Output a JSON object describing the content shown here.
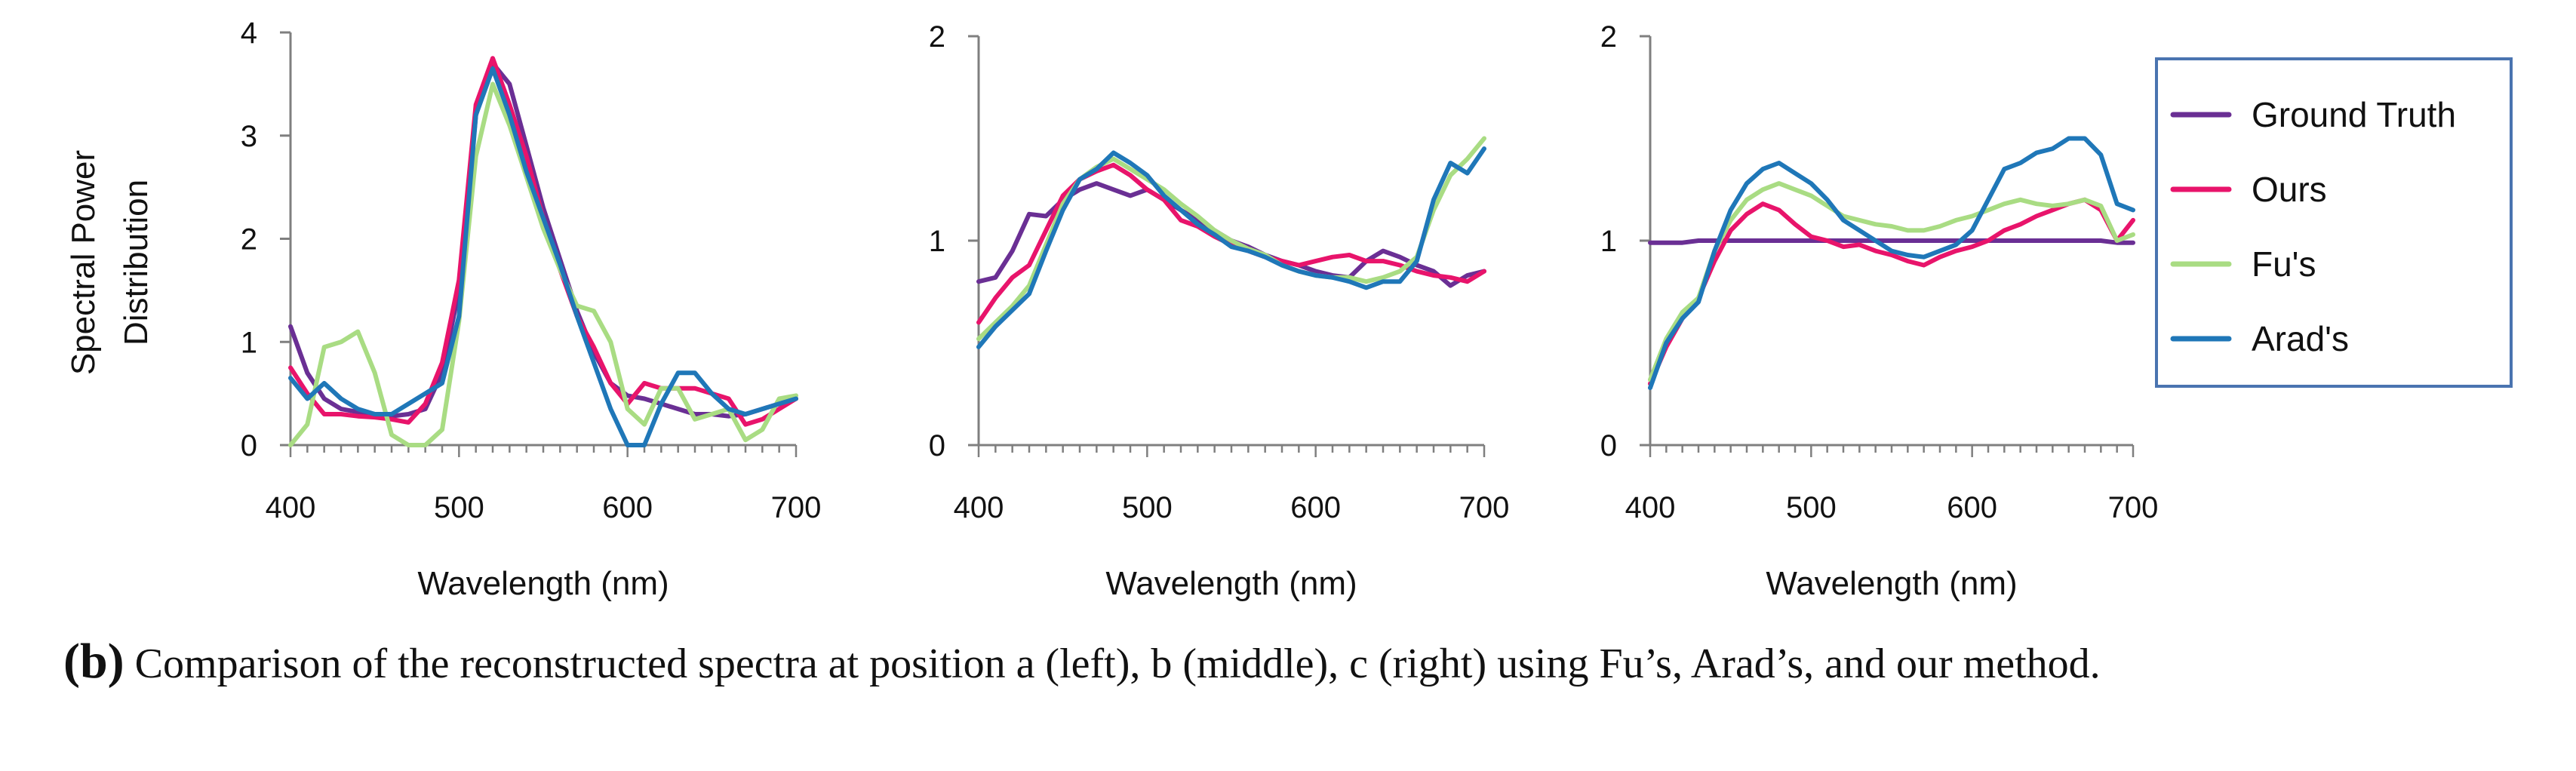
{
  "colors": {
    "ground_truth": "#6a2f94",
    "ours": "#e8146b",
    "fus": "#a9dc83",
    "arads": "#1f77b8",
    "axis": "#7f7f7f",
    "legend_border": "#4a74b0"
  },
  "y_axis_title_lines": [
    "Spectral Power",
    "Distribution"
  ],
  "legend": [
    {
      "name": "Ground Truth",
      "color_key": "ground_truth"
    },
    {
      "name": "Ours",
      "color_key": "ours"
    },
    {
      "name": "Fu's",
      "color_key": "fus"
    },
    {
      "name": "Arad's",
      "color_key": "arads"
    }
  ],
  "caption": {
    "label": "(b)",
    "text": "Comparison of the reconstructed spectra at position a (left), b (middle), c (right) using Fu’s, Arad’s, and our method."
  },
  "chart_data": [
    {
      "type": "line",
      "panel": "left",
      "xlabel": "Wavelength (nm)",
      "ylabel": "Spectral Power Distribution",
      "xlim": [
        400,
        700
      ],
      "ylim": [
        0,
        4
      ],
      "xticks": [
        400,
        500,
        600,
        700
      ],
      "yticks": [
        0,
        1,
        2,
        3,
        4
      ],
      "x": [
        400,
        410,
        420,
        430,
        440,
        450,
        460,
        470,
        480,
        490,
        500,
        510,
        520,
        530,
        540,
        550,
        560,
        570,
        580,
        590,
        600,
        610,
        620,
        630,
        640,
        650,
        660,
        670,
        680,
        690,
        700
      ],
      "series": [
        {
          "name": "Ground Truth",
          "color_key": "ground_truth",
          "values": [
            1.15,
            0.7,
            0.45,
            0.35,
            0.32,
            0.3,
            0.28,
            0.3,
            0.35,
            0.7,
            1.5,
            3.2,
            3.7,
            3.5,
            2.9,
            2.3,
            1.8,
            1.3,
            0.9,
            0.6,
            0.48,
            0.45,
            0.4,
            0.35,
            0.3,
            0.3,
            0.28,
            0.3,
            0.35,
            0.4,
            0.45
          ]
        },
        {
          "name": "Ours",
          "color_key": "ours",
          "values": [
            0.75,
            0.5,
            0.3,
            0.3,
            0.28,
            0.27,
            0.25,
            0.22,
            0.4,
            0.8,
            1.6,
            3.3,
            3.75,
            3.3,
            2.8,
            2.2,
            1.7,
            1.25,
            0.95,
            0.6,
            0.4,
            0.6,
            0.55,
            0.55,
            0.55,
            0.5,
            0.45,
            0.2,
            0.25,
            0.35,
            0.45
          ]
        },
        {
          "name": "Fu's",
          "color_key": "fus",
          "values": [
            0.0,
            0.2,
            0.95,
            1.0,
            1.1,
            0.7,
            0.1,
            0.0,
            0.0,
            0.15,
            1.2,
            2.8,
            3.5,
            3.1,
            2.6,
            2.1,
            1.7,
            1.35,
            1.3,
            1.0,
            0.35,
            0.2,
            0.55,
            0.55,
            0.25,
            0.3,
            0.35,
            0.05,
            0.15,
            0.45,
            0.48
          ]
        },
        {
          "name": "Arad's",
          "color_key": "arads",
          "values": [
            0.65,
            0.45,
            0.6,
            0.45,
            0.35,
            0.3,
            0.3,
            0.4,
            0.5,
            0.6,
            1.25,
            3.2,
            3.65,
            3.2,
            2.65,
            2.2,
            1.75,
            1.25,
            0.8,
            0.35,
            0.0,
            0.0,
            0.4,
            0.7,
            0.7,
            0.5,
            0.35,
            0.3,
            0.35,
            0.4,
            0.45
          ]
        }
      ]
    },
    {
      "type": "line",
      "panel": "middle",
      "xlabel": "Wavelength (nm)",
      "ylabel": "",
      "xlim": [
        400,
        700
      ],
      "ylim": [
        0,
        2
      ],
      "xticks": [
        400,
        500,
        600,
        700
      ],
      "yticks": [
        0,
        1,
        2
      ],
      "x": [
        400,
        410,
        420,
        430,
        440,
        450,
        460,
        470,
        480,
        490,
        500,
        510,
        520,
        530,
        540,
        550,
        560,
        570,
        580,
        590,
        600,
        610,
        620,
        630,
        640,
        650,
        660,
        670,
        680,
        690,
        700
      ],
      "series": [
        {
          "name": "Ground Truth",
          "color_key": "ground_truth",
          "values": [
            0.8,
            0.82,
            0.95,
            1.13,
            1.12,
            1.2,
            1.25,
            1.28,
            1.25,
            1.22,
            1.25,
            1.2,
            1.15,
            1.1,
            1.05,
            1.0,
            0.97,
            0.93,
            0.9,
            0.88,
            0.85,
            0.83,
            0.82,
            0.9,
            0.95,
            0.92,
            0.88,
            0.85,
            0.78,
            0.83,
            0.85
          ]
        },
        {
          "name": "Ours",
          "color_key": "ours",
          "values": [
            0.6,
            0.72,
            0.82,
            0.88,
            1.05,
            1.22,
            1.3,
            1.34,
            1.37,
            1.32,
            1.25,
            1.2,
            1.1,
            1.07,
            1.02,
            0.98,
            0.95,
            0.92,
            0.9,
            0.88,
            0.9,
            0.92,
            0.93,
            0.9,
            0.9,
            0.88,
            0.85,
            0.83,
            0.82,
            0.8,
            0.85
          ]
        },
        {
          "name": "Fu's",
          "color_key": "fus",
          "values": [
            0.52,
            0.6,
            0.68,
            0.78,
            0.98,
            1.18,
            1.3,
            1.36,
            1.4,
            1.35,
            1.3,
            1.25,
            1.18,
            1.12,
            1.05,
            1.0,
            0.96,
            0.93,
            0.88,
            0.85,
            0.83,
            0.82,
            0.82,
            0.8,
            0.82,
            0.85,
            0.92,
            1.15,
            1.32,
            1.4,
            1.5
          ]
        },
        {
          "name": "Arad's",
          "color_key": "arads",
          "values": [
            0.48,
            0.58,
            0.66,
            0.74,
            0.95,
            1.15,
            1.3,
            1.35,
            1.43,
            1.38,
            1.32,
            1.22,
            1.15,
            1.08,
            1.03,
            0.97,
            0.95,
            0.92,
            0.88,
            0.85,
            0.83,
            0.82,
            0.8,
            0.77,
            0.8,
            0.8,
            0.9,
            1.2,
            1.38,
            1.33,
            1.45
          ]
        }
      ]
    },
    {
      "type": "line",
      "panel": "right",
      "xlabel": "Wavelength (nm)",
      "ylabel": "",
      "xlim": [
        400,
        700
      ],
      "ylim": [
        0,
        2
      ],
      "xticks": [
        400,
        500,
        600,
        700
      ],
      "yticks": [
        0,
        1,
        2
      ],
      "x": [
        400,
        410,
        420,
        430,
        440,
        450,
        460,
        470,
        480,
        490,
        500,
        510,
        520,
        530,
        540,
        550,
        560,
        570,
        580,
        590,
        600,
        610,
        620,
        630,
        640,
        650,
        660,
        670,
        680,
        690,
        700
      ],
      "series": [
        {
          "name": "Ground Truth",
          "color_key": "ground_truth",
          "values": [
            0.99,
            0.99,
            0.99,
            1.0,
            1.0,
            1.0,
            1.0,
            1.0,
            1.0,
            1.0,
            1.0,
            1.0,
            1.0,
            1.0,
            1.0,
            1.0,
            1.0,
            1.0,
            1.0,
            1.0,
            1.0,
            1.0,
            1.0,
            1.0,
            1.0,
            1.0,
            1.0,
            1.0,
            1.0,
            0.99,
            0.99
          ]
        },
        {
          "name": "Ours",
          "color_key": "ours",
          "values": [
            0.3,
            0.48,
            0.62,
            0.72,
            0.9,
            1.05,
            1.13,
            1.18,
            1.15,
            1.08,
            1.02,
            1.0,
            0.97,
            0.98,
            0.95,
            0.93,
            0.9,
            0.88,
            0.92,
            0.95,
            0.97,
            1.0,
            1.05,
            1.08,
            1.12,
            1.15,
            1.18,
            1.2,
            1.15,
            1.0,
            1.1
          ]
        },
        {
          "name": "Fu's",
          "color_key": "fus",
          "values": [
            0.32,
            0.52,
            0.65,
            0.72,
            0.95,
            1.1,
            1.2,
            1.25,
            1.28,
            1.25,
            1.22,
            1.17,
            1.12,
            1.1,
            1.08,
            1.07,
            1.05,
            1.05,
            1.07,
            1.1,
            1.12,
            1.15,
            1.18,
            1.2,
            1.18,
            1.17,
            1.18,
            1.2,
            1.17,
            1.0,
            1.03
          ]
        },
        {
          "name": "Arad's",
          "color_key": "arads",
          "values": [
            0.28,
            0.5,
            0.62,
            0.7,
            0.95,
            1.15,
            1.28,
            1.35,
            1.38,
            1.33,
            1.28,
            1.2,
            1.1,
            1.05,
            1.0,
            0.95,
            0.93,
            0.92,
            0.95,
            0.98,
            1.05,
            1.2,
            1.35,
            1.38,
            1.43,
            1.45,
            1.5,
            1.5,
            1.42,
            1.18,
            1.15
          ]
        }
      ]
    }
  ]
}
